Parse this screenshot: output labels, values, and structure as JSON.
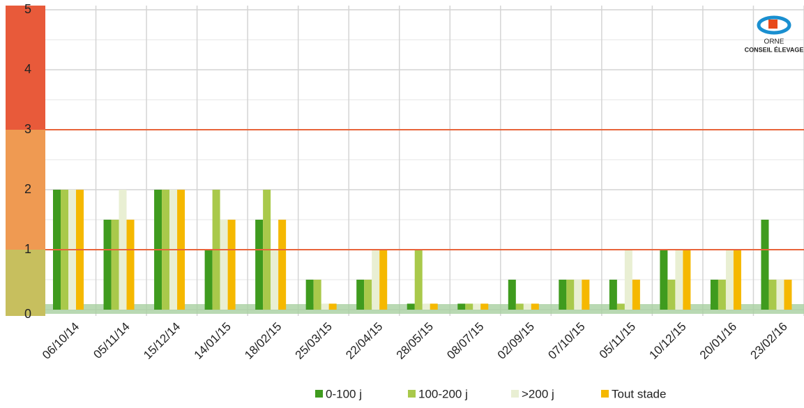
{
  "chart_data": {
    "type": "bar",
    "logo": {
      "line1": "ORNE",
      "line2": "CONSEIL ÉLEVAGE"
    },
    "categories": [
      "06/10/14",
      "05/11/14",
      "15/12/14",
      "14/01/15",
      "18/02/15",
      "25/03/15",
      "22/04/15",
      "28/05/15",
      "08/07/15",
      "02/09/15",
      "07/10/15",
      "05/11/15",
      "10/12/15",
      "20/01/16",
      "23/02/16"
    ],
    "series": [
      {
        "name": "0-100 j",
        "color": "#3f9b1e",
        "values": [
          2,
          1.5,
          2,
          1,
          1.5,
          0.5,
          0.5,
          0.1,
          0.1,
          0.5,
          0.5,
          0.5,
          1,
          0.5,
          1.5
        ]
      },
      {
        "name": "100-200 j",
        "color": "#a9c94b",
        "values": [
          2,
          1.5,
          2,
          2,
          2,
          0.5,
          0.5,
          1,
          0.1,
          0.1,
          0.5,
          0.1,
          0.5,
          0.5,
          0.5
        ]
      },
      {
        "name": ">200 j",
        "color": "#e9efd3",
        "values": [
          2,
          2,
          2,
          1.5,
          1,
          0.1,
          1,
          0.1,
          0.1,
          0.1,
          0.5,
          1,
          1,
          1,
          0.5
        ]
      },
      {
        "name": "Tout stade",
        "color": "#f5b800",
        "values": [
          2,
          1.5,
          2,
          1.5,
          1.5,
          0.1,
          1,
          0.1,
          0.1,
          0.1,
          0.5,
          0.5,
          1,
          1,
          0.5
        ]
      }
    ],
    "zones": [
      {
        "from": 0,
        "to": 1,
        "color": "#c7bf5e"
      },
      {
        "from": 1,
        "to": 3,
        "color": "#ef9a52"
      },
      {
        "from": 3,
        "to": 5,
        "color": "#e85a3a"
      }
    ],
    "threshold_color": "#e8643a",
    "ylim": [
      0,
      5
    ],
    "yticks": [
      0,
      1,
      2,
      3,
      4,
      5
    ],
    "grid": true
  }
}
